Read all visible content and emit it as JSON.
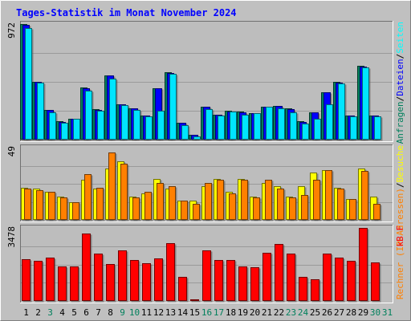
{
  "chart_data": {
    "type": "bar",
    "title": "Tages-Statistik im Monat November 2024",
    "categories": [
      "1",
      "2",
      "3",
      "4",
      "5",
      "6",
      "7",
      "8",
      "9",
      "10",
      "11",
      "12",
      "13",
      "14",
      "15",
      "16",
      "17",
      "18",
      "19",
      "20",
      "21",
      "22",
      "23",
      "24",
      "25",
      "26",
      "27",
      "28",
      "29",
      "30",
      "31"
    ],
    "weekend_days": [
      "3",
      "9",
      "10",
      "16",
      "17",
      "23",
      "24",
      "30",
      "31"
    ],
    "panels": [
      {
        "id": "requests",
        "max_label": "972",
        "ymax": 972,
        "right_labels": [
          {
            "text": "Anfragen",
            "color": "#00805c"
          },
          {
            "text": "/",
            "color": "#000000"
          },
          {
            "text": "Dateien",
            "color": "#0000ff"
          },
          {
            "text": "/",
            "color": "#000000"
          },
          {
            "text": "Seiten",
            "color": "#00ffff"
          }
        ],
        "series": [
          {
            "name": "Anfragen",
            "color": "#00805c",
            "values": [
              970,
              485,
              253,
              152,
              178,
              440,
              255,
              540,
              300,
              265,
              203,
              435,
              565,
              145,
              40,
              278,
              212,
              240,
              235,
              224,
              280,
              285,
              260,
              152,
              230,
              400,
              485,
              205,
              620,
              205,
              null
            ]
          },
          {
            "name": "Dateien",
            "color": "#0000ff",
            "values": [
              965,
              484,
              250,
              150,
              176,
              435,
              253,
              537,
              298,
              262,
              200,
              432,
              562,
              142,
              38,
              275,
              210,
              238,
              232,
              222,
              278,
              283,
              258,
              150,
              228,
              395,
              482,
              203,
              615,
              203,
              null
            ]
          },
          {
            "name": "Seiten",
            "color": "#00e5ff",
            "values": [
              940,
              480,
              232,
              140,
              176,
              410,
              242,
              510,
              290,
              250,
              197,
              242,
              555,
              122,
              25,
              256,
              205,
              235,
              207,
              220,
              275,
              260,
              230,
              133,
              175,
              295,
              475,
              198,
              605,
              198,
              null
            ]
          }
        ]
      },
      {
        "id": "visits",
        "max_label": "49",
        "ymax": 49,
        "right_labels": [
          {
            "text": "Rechner (IP-Adressen)",
            "color": "#ff8000"
          },
          {
            "text": "/",
            "color": "#000000"
          },
          {
            "text": "Besuche",
            "color": "#ffff00"
          }
        ],
        "series": [
          {
            "name": "Besuche",
            "color": "#ffff00",
            "values": [
              22,
              21,
              19,
              16,
              12,
              27,
              21,
              35,
              40,
              16,
              18,
              28,
              21,
              13,
              13,
              23,
              28,
              19,
              28,
              16,
              25,
              23,
              16,
              23,
              32,
              34,
              22,
              14,
              35,
              16,
              null
            ]
          },
          {
            "name": "Rechner (IP-Adressen)",
            "color": "#ff8000",
            "values": [
              21,
              20,
              19,
              15,
              12,
              31,
              22,
              46,
              38,
              15,
              19,
              25,
              23,
              13,
              11,
              25,
              27,
              18,
              27,
              15,
              27,
              21,
              15,
              17,
              27,
              34,
              21,
              14,
              33,
              11,
              null
            ]
          }
        ]
      },
      {
        "id": "bytes",
        "max_label": "3478",
        "ymax": 3478,
        "right_labels": [
          {
            "text": "kB F",
            "color": "#ff0000"
          }
        ],
        "series": [
          {
            "name": "kB F",
            "color": "#ff0000",
            "values": [
              1985,
              1930,
              2070,
              1625,
              1660,
              3200,
              2250,
              1760,
              2420,
              1968,
              1780,
              2010,
              2740,
              1160,
              10,
              2420,
              1960,
              1960,
              1650,
              1590,
              2280,
              2720,
              2250,
              1140,
              1050,
              2240,
              2060,
              1925,
              3478,
              1840,
              null
            ]
          }
        ]
      }
    ]
  }
}
